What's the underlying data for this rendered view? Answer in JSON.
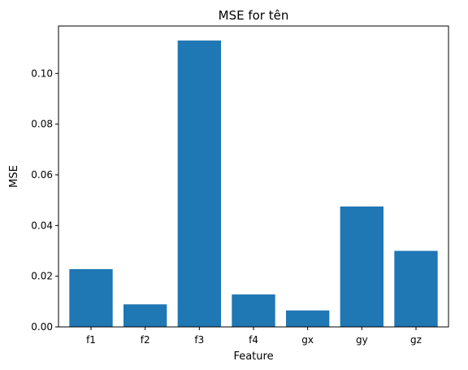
{
  "chart_data": {
    "type": "bar",
    "title": "MSE for tên",
    "xlabel": "Feature",
    "ylabel": "MSE",
    "categories": [
      "f1",
      "f2",
      "f3",
      "f4",
      "gx",
      "gy",
      "gz"
    ],
    "values": [
      0.0228,
      0.0089,
      0.113,
      0.0128,
      0.0065,
      0.0475,
      0.03
    ],
    "ylim": [
      0,
      0.1187
    ],
    "yticks": [
      0.0,
      0.02,
      0.04,
      0.06,
      0.08,
      0.1
    ],
    "ytick_labels": [
      "0.00",
      "0.02",
      "0.04",
      "0.06",
      "0.08",
      "0.10"
    ],
    "bar_color": "#1f77b4",
    "grid": false,
    "legend": "none"
  }
}
